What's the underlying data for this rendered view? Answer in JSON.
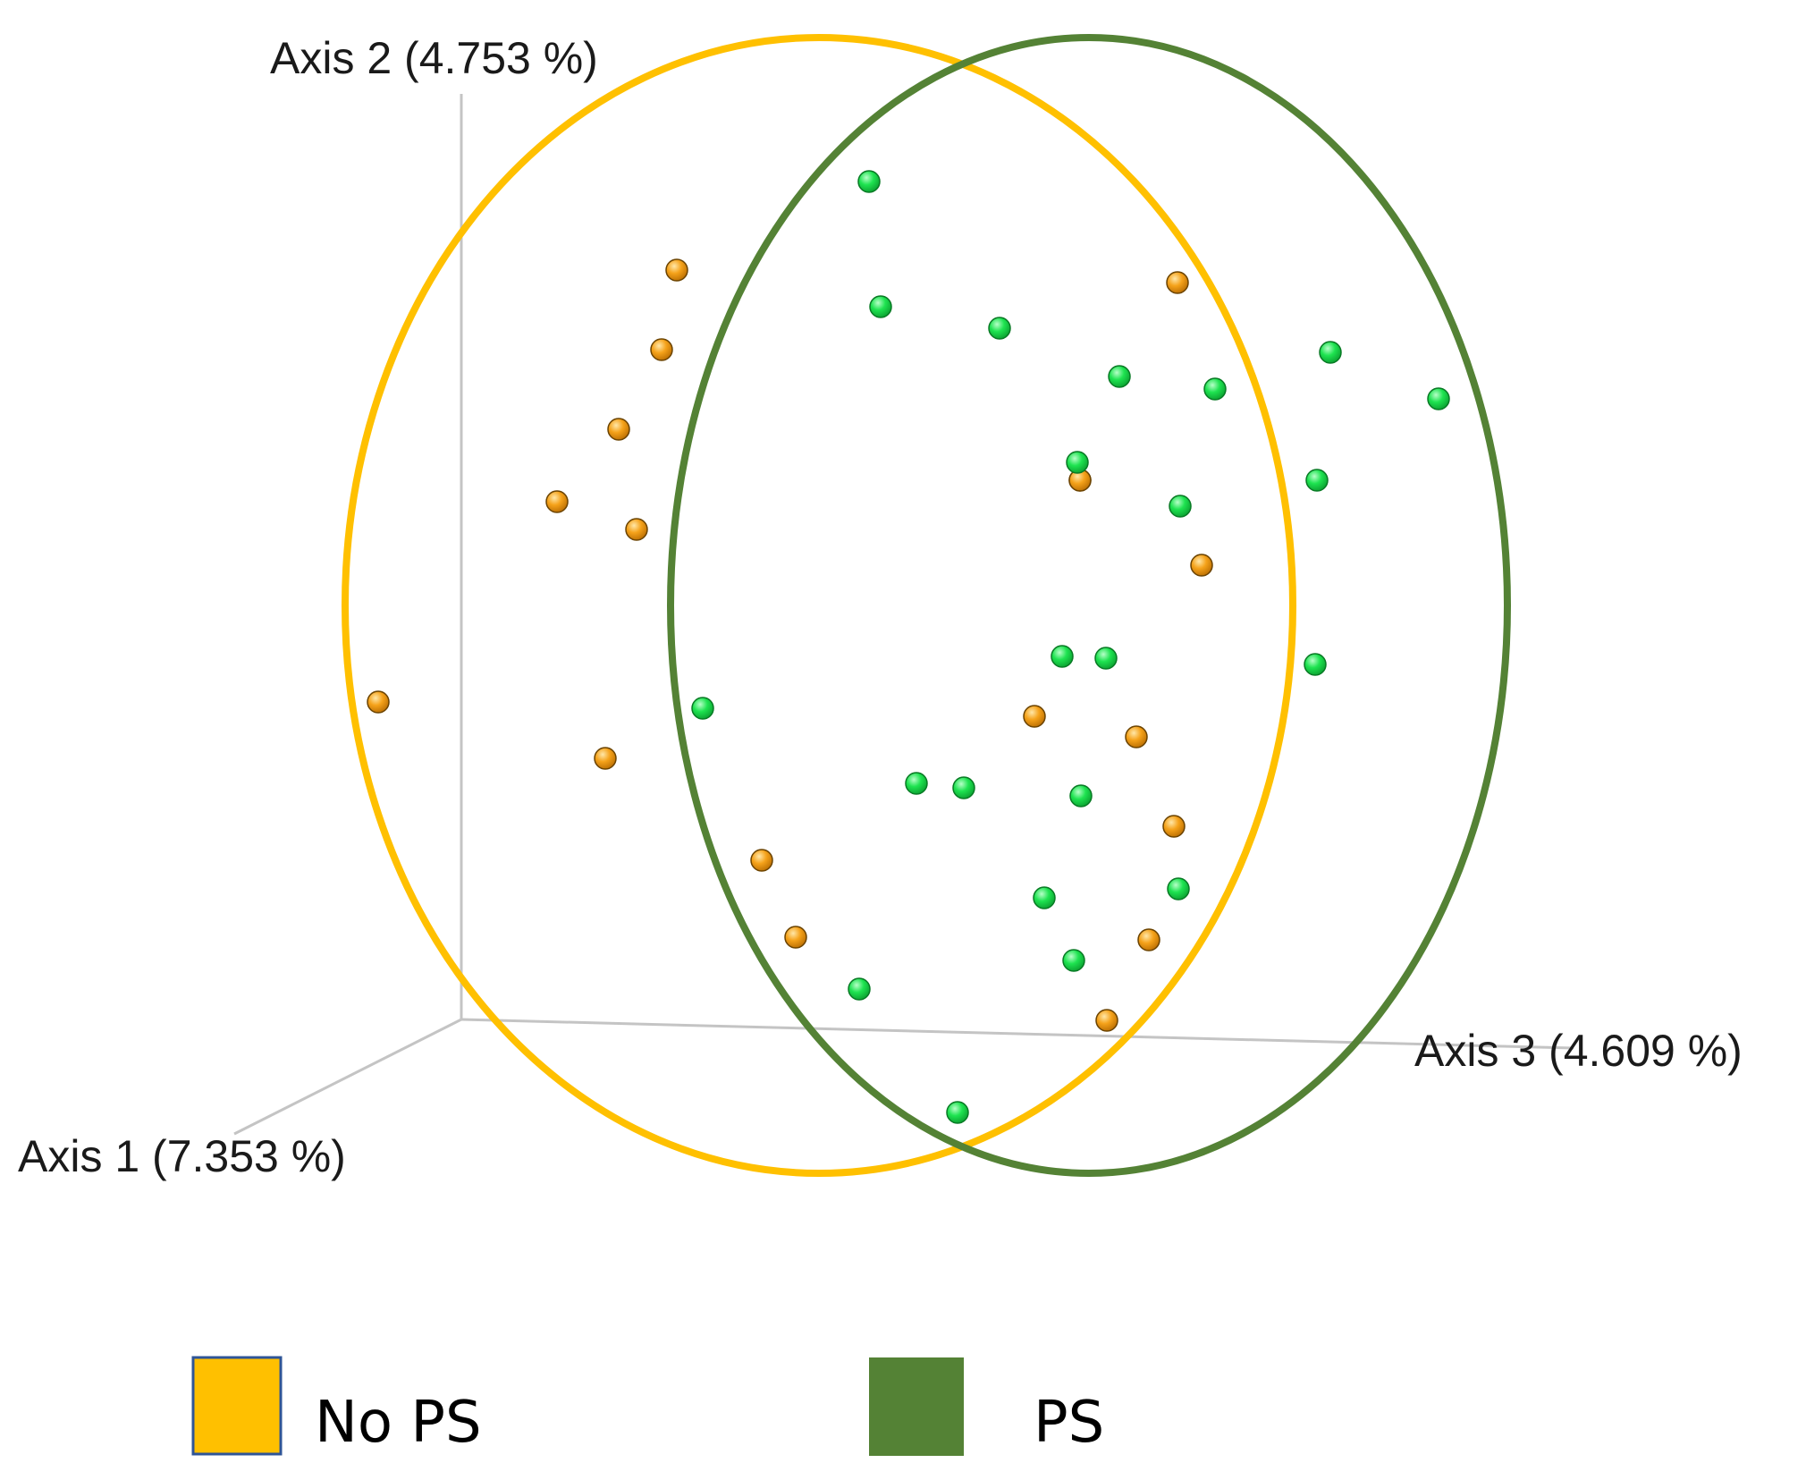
{
  "chart_data": {
    "type": "scatter",
    "projection": "3D PCoA",
    "axes": [
      {
        "name": "Axis 1",
        "variance": "7.353 %",
        "label": "Axis 1 (7.353 %)"
      },
      {
        "name": "Axis 2",
        "variance": "4.753 %",
        "label": "Axis 2 (4.753 %)"
      },
      {
        "name": "Axis 3",
        "variance": "4.609 %",
        "label": "Axis 3 (4.609 %)"
      }
    ],
    "grid": false,
    "legend_position": "bottom",
    "series": [
      {
        "name": "No PS",
        "color": "#FFC000",
        "point_color": "#F29A0A",
        "ellipse": true,
        "point_count": 18
      },
      {
        "name": "PS",
        "color": "#548235",
        "point_color": "#1EE350",
        "ellipse": true,
        "point_count": 25
      }
    ]
  }
}
